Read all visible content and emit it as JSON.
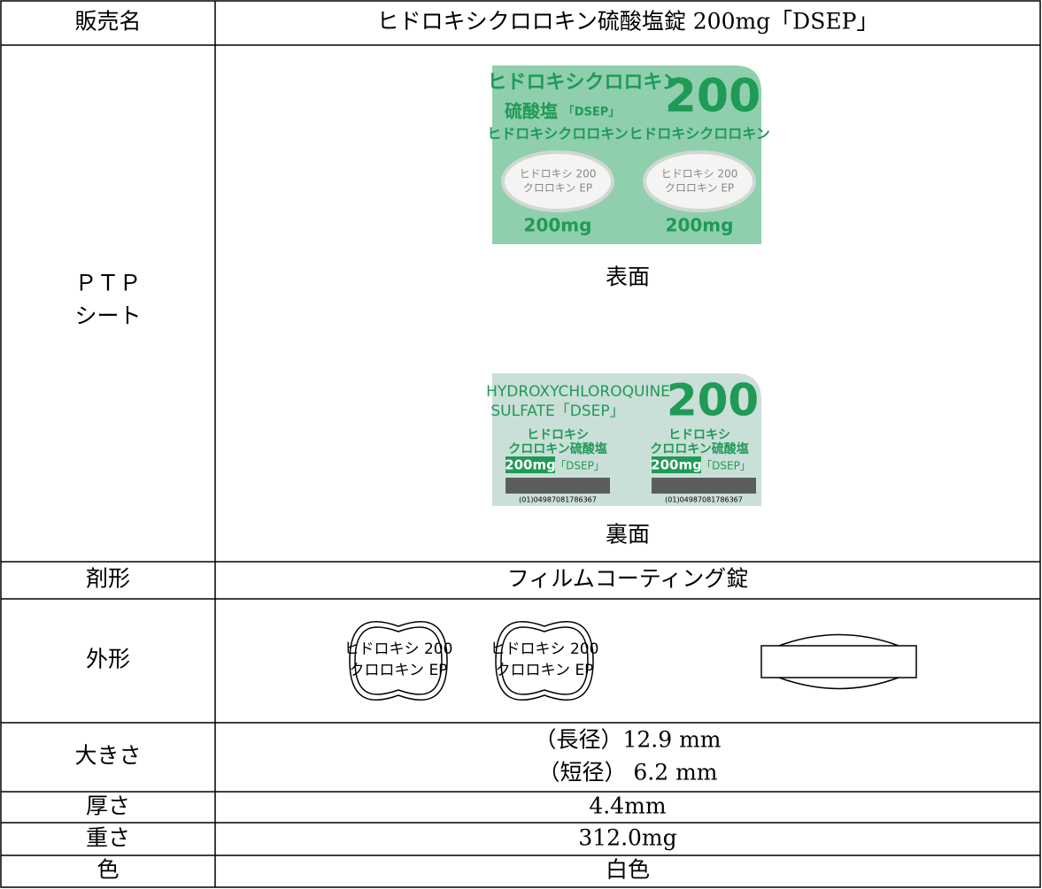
{
  "table": {
    "rows": [
      {
        "label": "販売名",
        "value": "ヒドロキシクロロキン硫酸塩錠 200mg「DSEP」"
      },
      {
        "label_lines": [
          "ＰＴＰ",
          "シート"
        ],
        "front": {
          "caption": "表面",
          "brand": "ヒドロキシクロロキン",
          "strength": "200",
          "salt": "硫酸塩",
          "maker": "「DSEP」",
          "pocket_name": "ヒドロキシクロロキン",
          "imprint_lines": [
            "ヒドロキシ 200",
            "クロロキン EP"
          ],
          "dose": "200mg"
        },
        "back": {
          "caption": "裏面",
          "name_lines": [
            "HYDROXYCHLOROQUINE",
            "SULFATE「DSEP」"
          ],
          "strength": "200",
          "pocket_lines": [
            "ヒドロキシ",
            "クロロキン硫酸塩"
          ],
          "dose": "200mg",
          "maker": "「DSEP」",
          "barcode": "(01)04987081786367"
        }
      },
      {
        "label": "剤形",
        "value": "フィルムコーティング錠"
      },
      {
        "label": "外形",
        "imprint_lines": [
          "ヒドロキシ 200",
          "クロロキン EP"
        ]
      },
      {
        "label": "大きさ",
        "value_lines": [
          "（長径）12.9 mm",
          "（短径） 6.2 mm"
        ]
      },
      {
        "label": "厚さ",
        "value": "4.4mm"
      },
      {
        "label": "重さ",
        "value": "312.0mg"
      },
      {
        "label": "色",
        "value": "白色"
      }
    ]
  }
}
